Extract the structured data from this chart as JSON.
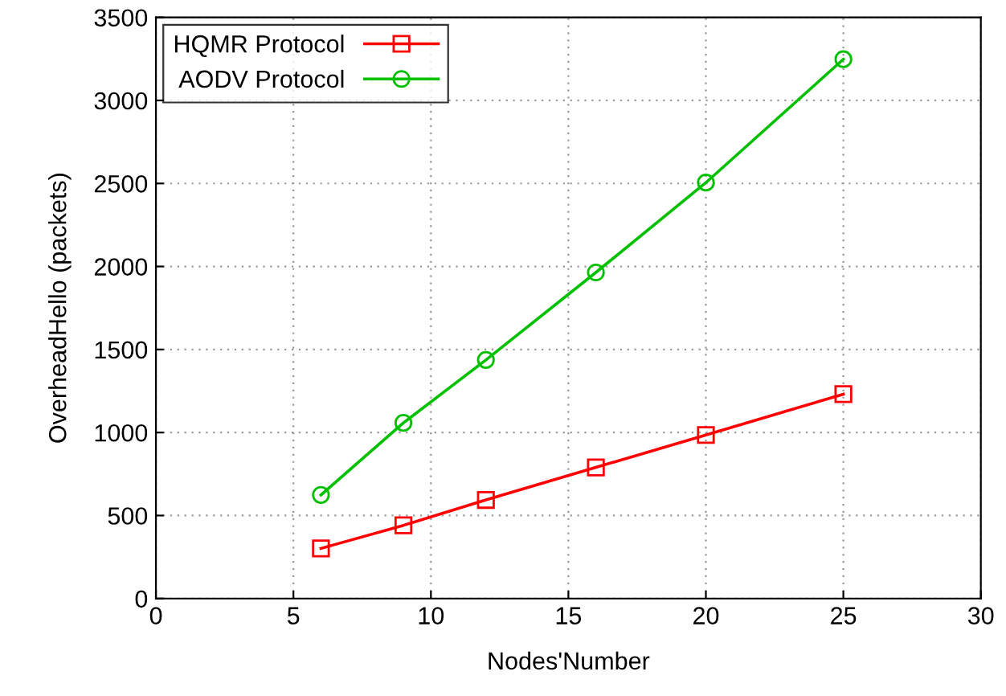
{
  "chart_data": {
    "type": "line",
    "xlabel": "Nodes'Number",
    "ylabel": "OverheadHello (packets)",
    "x": [
      6,
      9,
      12,
      16,
      20,
      25
    ],
    "series": [
      {
        "name": "HQMR Protocol",
        "color": "#ff0000",
        "marker": "square",
        "values": [
          302,
          441,
          594,
          790,
          985,
          1231
        ]
      },
      {
        "name": "AODV Protocol",
        "color": "#00c000",
        "marker": "circle",
        "values": [
          624,
          1058,
          1437,
          1964,
          2505,
          3248
        ]
      }
    ],
    "xlim": [
      0,
      30
    ],
    "xticks": [
      0,
      5,
      10,
      15,
      20,
      25,
      30
    ],
    "ylim": [
      0,
      3500
    ],
    "yticks": [
      0,
      500,
      1000,
      1500,
      2000,
      2500,
      3000,
      3500
    ],
    "grid": true,
    "legend": "top left",
    "line_style": "solid"
  }
}
